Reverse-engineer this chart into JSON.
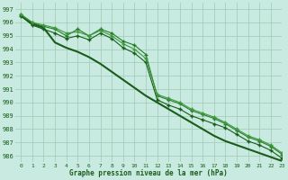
{
  "title": "Graphe pression niveau de la mer (hPa)",
  "bg_color": "#c8eae0",
  "grid_color": "#a0c8b4",
  "line_color_dark": "#1a5c1a",
  "xlim": [
    -0.5,
    23
  ],
  "ylim": [
    985.5,
    997.5
  ],
  "yticks": [
    986,
    987,
    988,
    989,
    990,
    991,
    992,
    993,
    994,
    995,
    996,
    997
  ],
  "xticks": [
    0,
    1,
    2,
    3,
    4,
    5,
    6,
    7,
    8,
    9,
    10,
    11,
    12,
    13,
    14,
    15,
    16,
    17,
    18,
    19,
    20,
    21,
    22,
    23
  ],
  "series": [
    {
      "x": [
        0,
        1,
        2,
        3,
        4,
        5,
        6,
        7,
        8,
        9,
        10,
        11,
        12,
        13,
        14,
        15,
        16,
        17,
        18,
        19,
        20,
        21,
        22,
        23
      ],
      "y": [
        996.6,
        996.0,
        995.7,
        995.5,
        995.0,
        995.5,
        995.0,
        995.5,
        995.2,
        994.6,
        994.3,
        993.6,
        990.5,
        990.2,
        989.9,
        989.4,
        989.1,
        988.8,
        988.4,
        987.9,
        987.4,
        987.1,
        986.7,
        986.1
      ],
      "color": "#2a7a2a",
      "marker": "+",
      "lw": 0.8,
      "ms": 3.5,
      "mew": 1.0
    },
    {
      "x": [
        0,
        1,
        2,
        3,
        4,
        5,
        6,
        7,
        8,
        9,
        10,
        11,
        12,
        13,
        14,
        15,
        16,
        17,
        18,
        19,
        20,
        21,
        22,
        23
      ],
      "y": [
        996.5,
        995.8,
        995.5,
        995.2,
        994.8,
        995.0,
        994.7,
        995.2,
        994.8,
        994.1,
        993.7,
        993.0,
        990.2,
        989.8,
        989.5,
        989.0,
        988.7,
        988.4,
        988.1,
        987.6,
        987.1,
        986.8,
        986.4,
        985.8
      ],
      "color": "#1a5c1a",
      "marker": "+",
      "lw": 0.8,
      "ms": 3.5,
      "mew": 1.0
    },
    {
      "x": [
        0,
        1,
        2,
        3,
        4,
        5,
        6,
        7,
        8,
        9,
        10,
        11,
        12,
        13,
        14,
        15,
        16,
        17,
        18,
        19,
        20,
        21,
        22,
        23
      ],
      "y": [
        996.5,
        995.9,
        995.6,
        994.5,
        994.1,
        993.8,
        993.4,
        992.9,
        992.3,
        991.7,
        991.1,
        990.5,
        990.0,
        989.5,
        989.0,
        988.5,
        988.0,
        987.5,
        987.1,
        986.8,
        986.5,
        986.2,
        985.9,
        985.6
      ],
      "color": "#1a5c1a",
      "marker": "None",
      "lw": 1.5,
      "ms": 0,
      "mew": 0
    },
    {
      "x": [
        0,
        1,
        2,
        3,
        4,
        5,
        6,
        7,
        8,
        9,
        10,
        11,
        12,
        13,
        14,
        15,
        16,
        17,
        18,
        19,
        20,
        21,
        22,
        23
      ],
      "y": [
        996.6,
        996.0,
        995.8,
        995.6,
        995.2,
        995.3,
        995.0,
        995.4,
        995.0,
        994.4,
        994.0,
        993.3,
        990.6,
        990.3,
        990.0,
        989.5,
        989.2,
        988.9,
        988.5,
        988.0,
        987.5,
        987.2,
        986.8,
        986.2
      ],
      "color": "#3a9a3a",
      "marker": "+",
      "lw": 0.8,
      "ms": 3.5,
      "mew": 1.0
    }
  ]
}
